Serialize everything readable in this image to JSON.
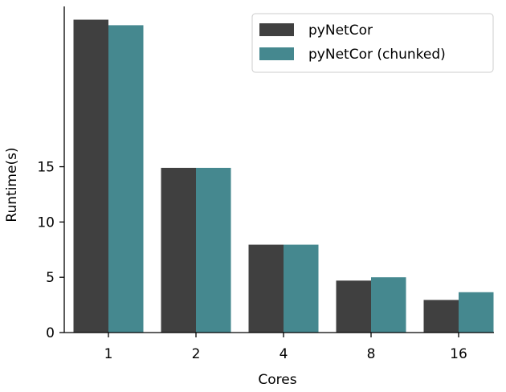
{
  "chart_data": {
    "type": "bar",
    "xlabel": "Cores",
    "ylabel": "Runtime(s)",
    "categories": [
      "1",
      "2",
      "4",
      "8",
      "16"
    ],
    "series": [
      {
        "name": "pyNetCor",
        "values": [
          28.3,
          14.9,
          7.95,
          4.7,
          2.95
        ],
        "color": "#404040"
      },
      {
        "name": "pyNetCor (chunked)",
        "values": [
          27.8,
          14.9,
          7.95,
          5.0,
          3.65
        ],
        "color": "#45888f"
      }
    ],
    "yticks": [
      0,
      5,
      10,
      15
    ],
    "ytick_labels": [
      "0",
      "5",
      "10",
      "15"
    ],
    "ylim": [
      0,
      29.5
    ],
    "grid": false,
    "legend_position": "top-right"
  }
}
